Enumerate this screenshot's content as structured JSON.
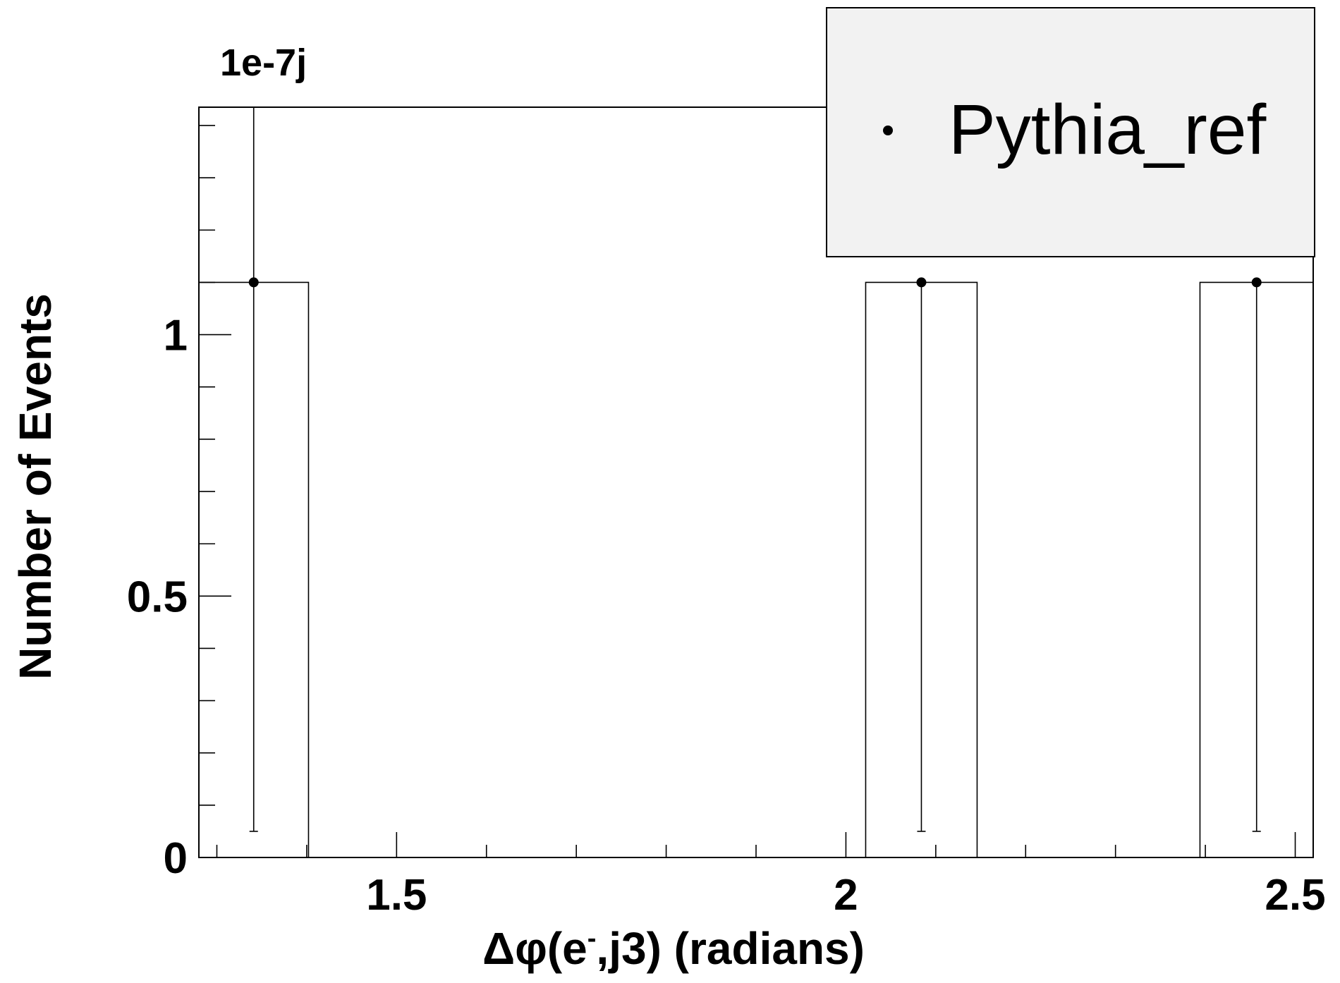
{
  "chart_data": {
    "type": "bar",
    "xlabel": "Δφ(e⁻,j3) (radians)",
    "xlabel_parts": {
      "delta": "Δφ",
      "open": "(e",
      "sup": "-",
      "close": ",j3) (radians)"
    },
    "ylabel": "Number of Events",
    "y_exponent_label": "1e-7j",
    "xlim": [
      1.28,
      2.52
    ],
    "ylim": [
      0,
      1.435
    ],
    "x_ticks": [
      {
        "value": 1.5,
        "label": "1.5"
      },
      {
        "value": 2.0,
        "label": "2"
      },
      {
        "value": 2.5,
        "label": "2.5"
      }
    ],
    "y_ticks": [
      {
        "value": 0,
        "label": "0"
      },
      {
        "value": 0.5,
        "label": "0.5"
      },
      {
        "value": 1.0,
        "label": "1"
      }
    ],
    "x_minor_step": 0.1,
    "y_minor_step": 0.1,
    "bins": [
      {
        "x_low": 1.28,
        "x_high": 1.402,
        "value": 1.1
      },
      {
        "x_low": 2.022,
        "x_high": 2.146,
        "value": 1.1
      },
      {
        "x_low": 2.394,
        "x_high": 2.52,
        "value": 1.1
      }
    ],
    "series": [
      {
        "name": "Pythia_ref",
        "points": [
          {
            "x": 1.341,
            "y": 1.1,
            "err_low": 0.05,
            "err_high": 1.435
          },
          {
            "x": 2.084,
            "y": 1.1,
            "err_low": 0.05,
            "err_high": 1.1
          },
          {
            "x": 2.457,
            "y": 1.1,
            "err_low": 0.05,
            "err_high": 1.1
          }
        ]
      }
    ],
    "legend": {
      "position": "top-right",
      "entries": [
        "Pythia_ref"
      ]
    },
    "colors": {
      "legend_bg": "#f2f2f2",
      "line": "#000000"
    }
  }
}
